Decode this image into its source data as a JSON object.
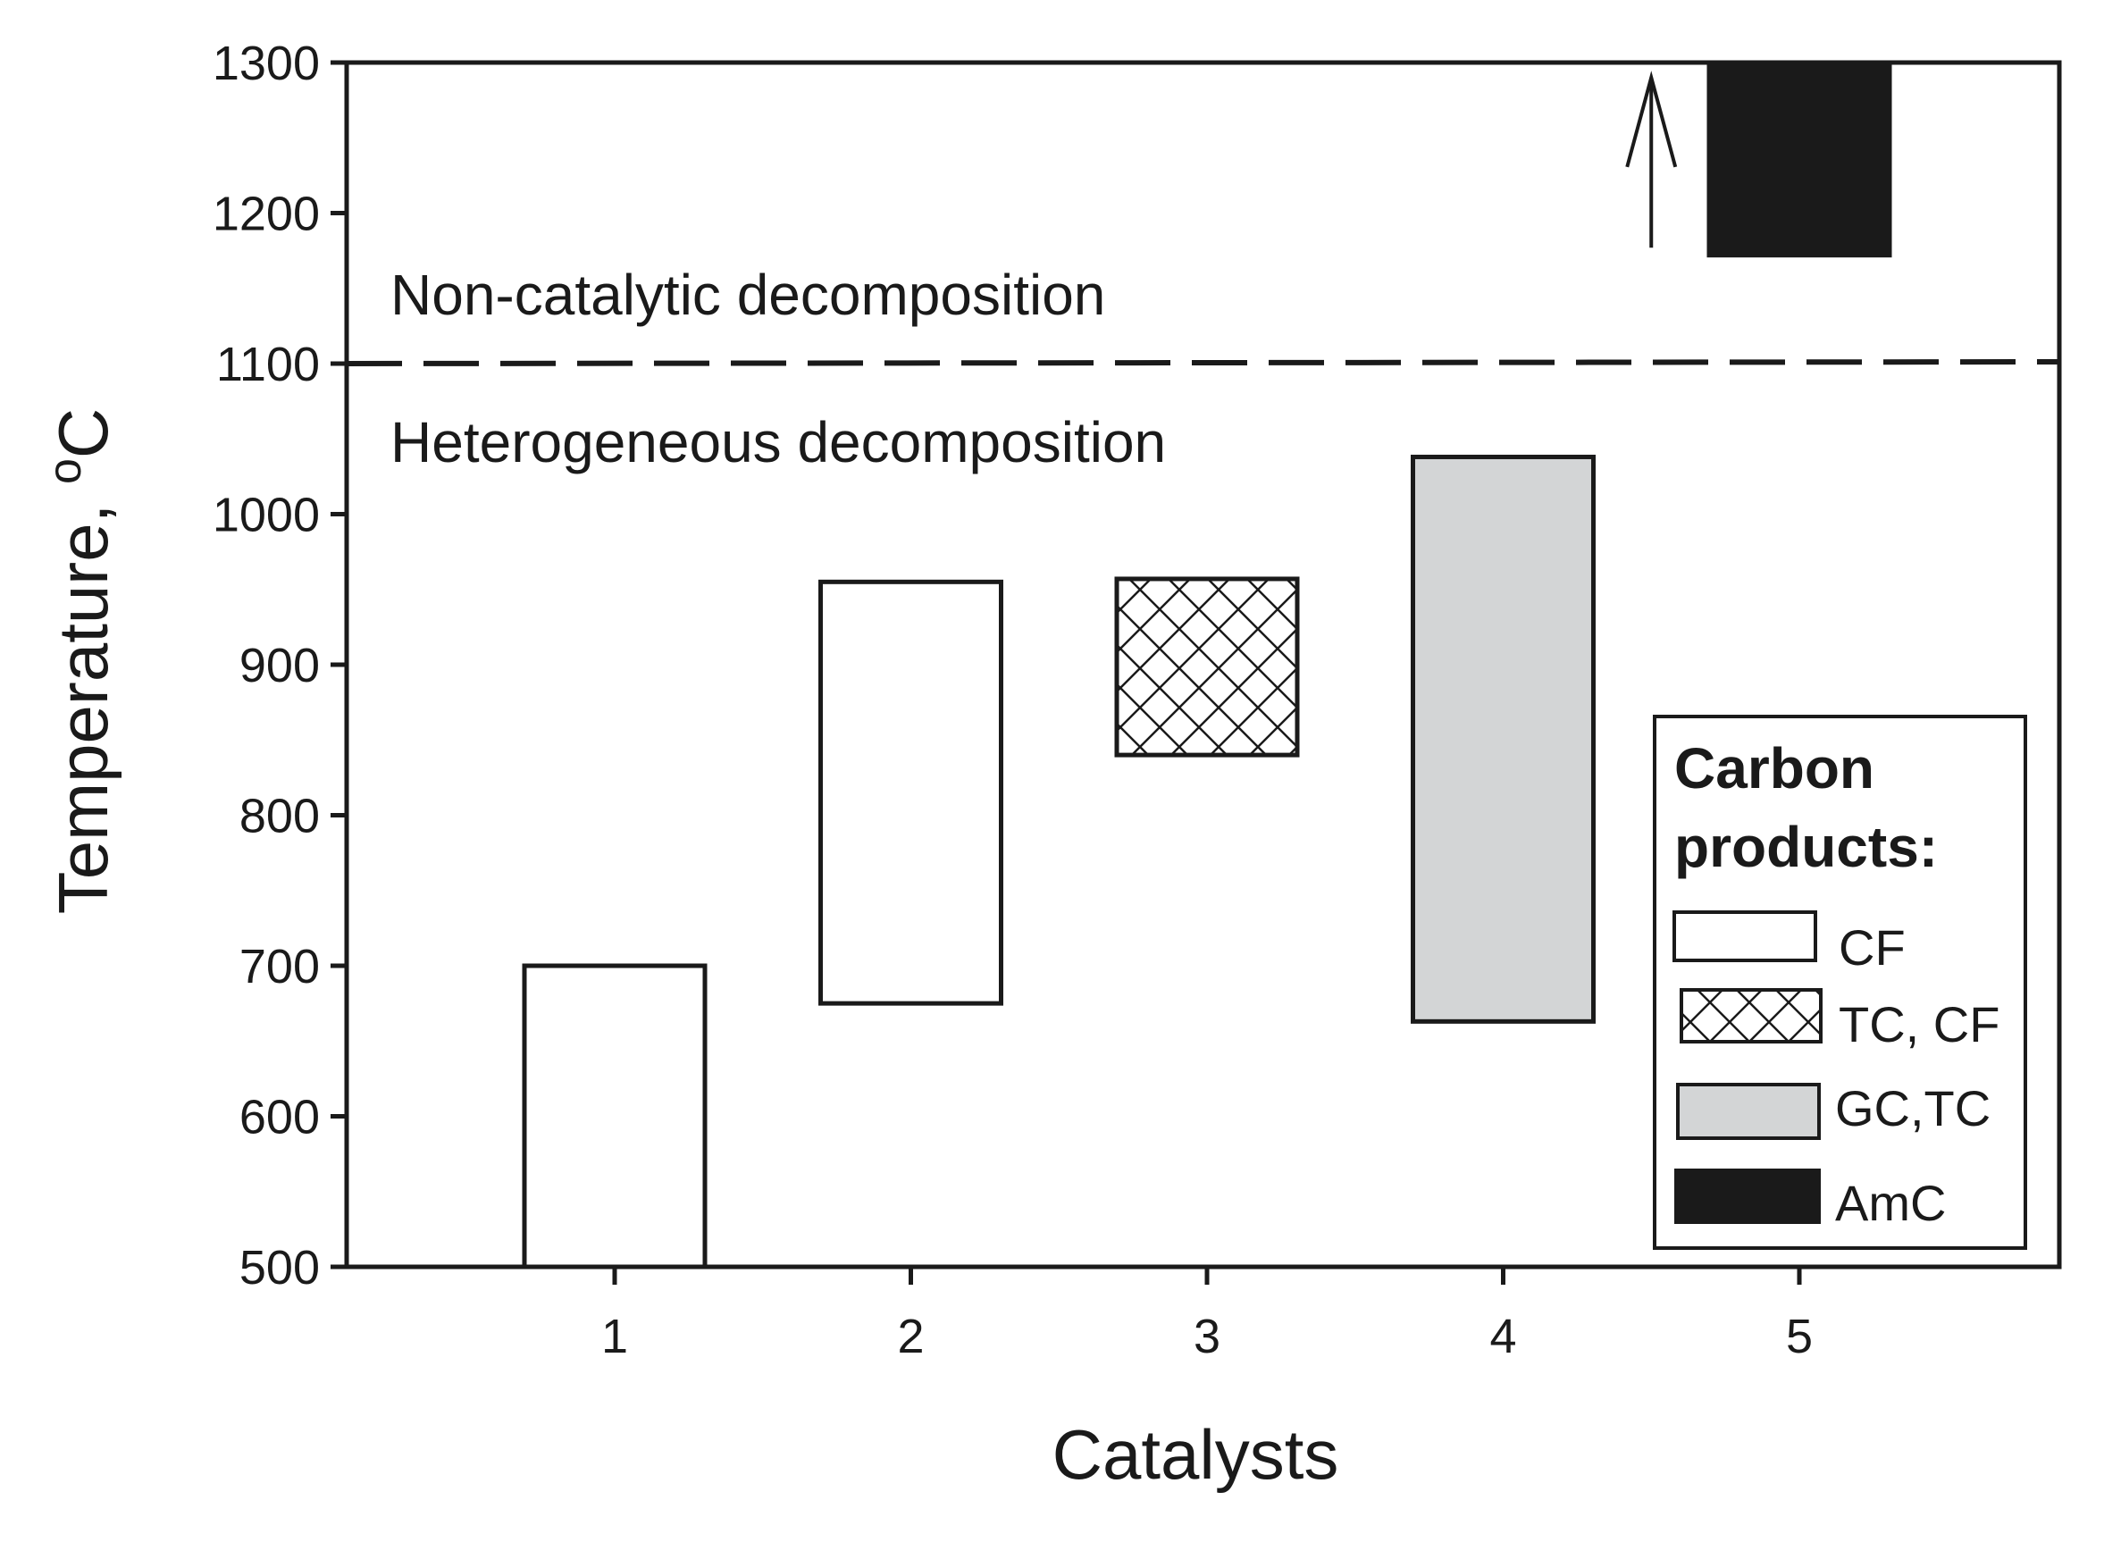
{
  "chart_data": {
    "type": "floating-bar",
    "xlabel": "Catalysts",
    "ylabel": "Temperature, ",
    "ylabel_superscript": "o",
    "ylabel_unit": "C",
    "ylim": [
      500,
      1300
    ],
    "xlim": [
      0.1,
      5.9
    ],
    "y_ticks": [
      500,
      600,
      700,
      800,
      900,
      1000,
      1100,
      1200,
      1300
    ],
    "x_ticks": [
      1,
      2,
      3,
      4,
      5
    ],
    "grid": false,
    "bars": [
      {
        "catalyst": 1,
        "low": 500,
        "high": 700,
        "product": "CF"
      },
      {
        "catalyst": 2,
        "low": 675,
        "high": 955,
        "product": "CF"
      },
      {
        "catalyst": 3,
        "low": 840,
        "high": 957,
        "product": "TC, CF"
      },
      {
        "catalyst": 4,
        "low": 663,
        "high": 1038,
        "product": "GC,TC"
      },
      {
        "catalyst": 5,
        "low": 1172,
        "high": 1300,
        "product": "AmC"
      }
    ],
    "threshold": {
      "value": 1100,
      "style": "dashed"
    },
    "annotations": [
      {
        "text": "Non-catalytic decomposition"
      },
      {
        "text": "Heterogeneous decomposition"
      }
    ],
    "arrow": {
      "x": 4.5,
      "from": 1177,
      "to": 1290,
      "direction": "up"
    },
    "legend": {
      "title_line1": "Carbon",
      "title_line2": "products:",
      "placement": "bottom-right",
      "entries": [
        {
          "label": "CF",
          "style": "open",
          "color": "#ffffff"
        },
        {
          "label": "TC, CF",
          "style": "crosshatch",
          "color": "#ffffff"
        },
        {
          "label": "GC,TC",
          "style": "solid",
          "color": "#d3d5d6"
        },
        {
          "label": "AmC",
          "style": "solid",
          "color": "#1a1a1a"
        }
      ]
    }
  }
}
